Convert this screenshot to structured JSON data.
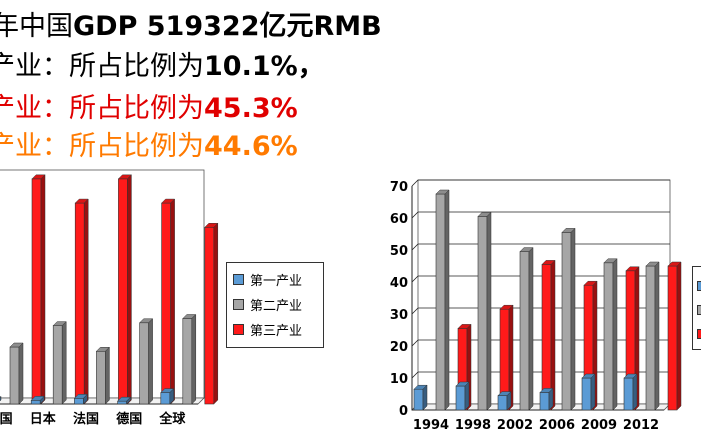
{
  "header": {
    "line1_pre": "年中国",
    "line1_bold": "GDP 519322亿元RMB",
    "line2_pre": "产业：所占比例为",
    "line2_val": "10.1%，",
    "line3_pre": "产业：所占比例为",
    "line3_val": "45.3%",
    "line4_pre": "产业：所占比例为",
    "line4_val": "44.6%"
  },
  "legend_labels": [
    "第一产业",
    "第二产业",
    "第三产业"
  ],
  "colors": {
    "primary": "#5b9bd5",
    "secondary": "#a6a6a6",
    "tertiary": "#ff1a1a",
    "orange": "#ff7a00",
    "red_text": "#e00000"
  },
  "chart_data": [
    {
      "type": "bar",
      "categories": [
        "美国",
        "日本",
        "法国",
        "德国",
        "全球"
      ],
      "series": [
        {
          "name": "第一产业",
          "values": [
            1.2,
            1.3,
            2,
            1,
            4
          ]
        },
        {
          "name": "第二产业",
          "values": [
            20,
            27.5,
            18.5,
            28.5,
            30
          ]
        },
        {
          "name": "第三产业",
          "values": [
            79,
            70.5,
            79,
            70.5,
            62
          ]
        }
      ],
      "ylim": [
        0,
        80
      ],
      "legend": "right"
    },
    {
      "type": "bar",
      "categories": [
        "1994",
        "1998",
        "2002",
        "2006",
        "2009",
        "2012"
      ],
      "series": [
        {
          "name": "第一产业",
          "values": [
            6.5,
            7.5,
            4.5,
            5.5,
            10,
            10
          ]
        },
        {
          "name": "第二产业",
          "values": [
            67.5,
            60.5,
            49.5,
            55.5,
            46,
            45
          ]
        },
        {
          "name": "第三产业",
          "values": [
            25.5,
            31.5,
            45.5,
            39,
            43.5,
            45
          ]
        }
      ],
      "yticks": [
        0,
        10,
        20,
        30,
        40,
        50,
        60,
        70
      ],
      "ylim": [
        0,
        70
      ],
      "legend": "right"
    }
  ]
}
